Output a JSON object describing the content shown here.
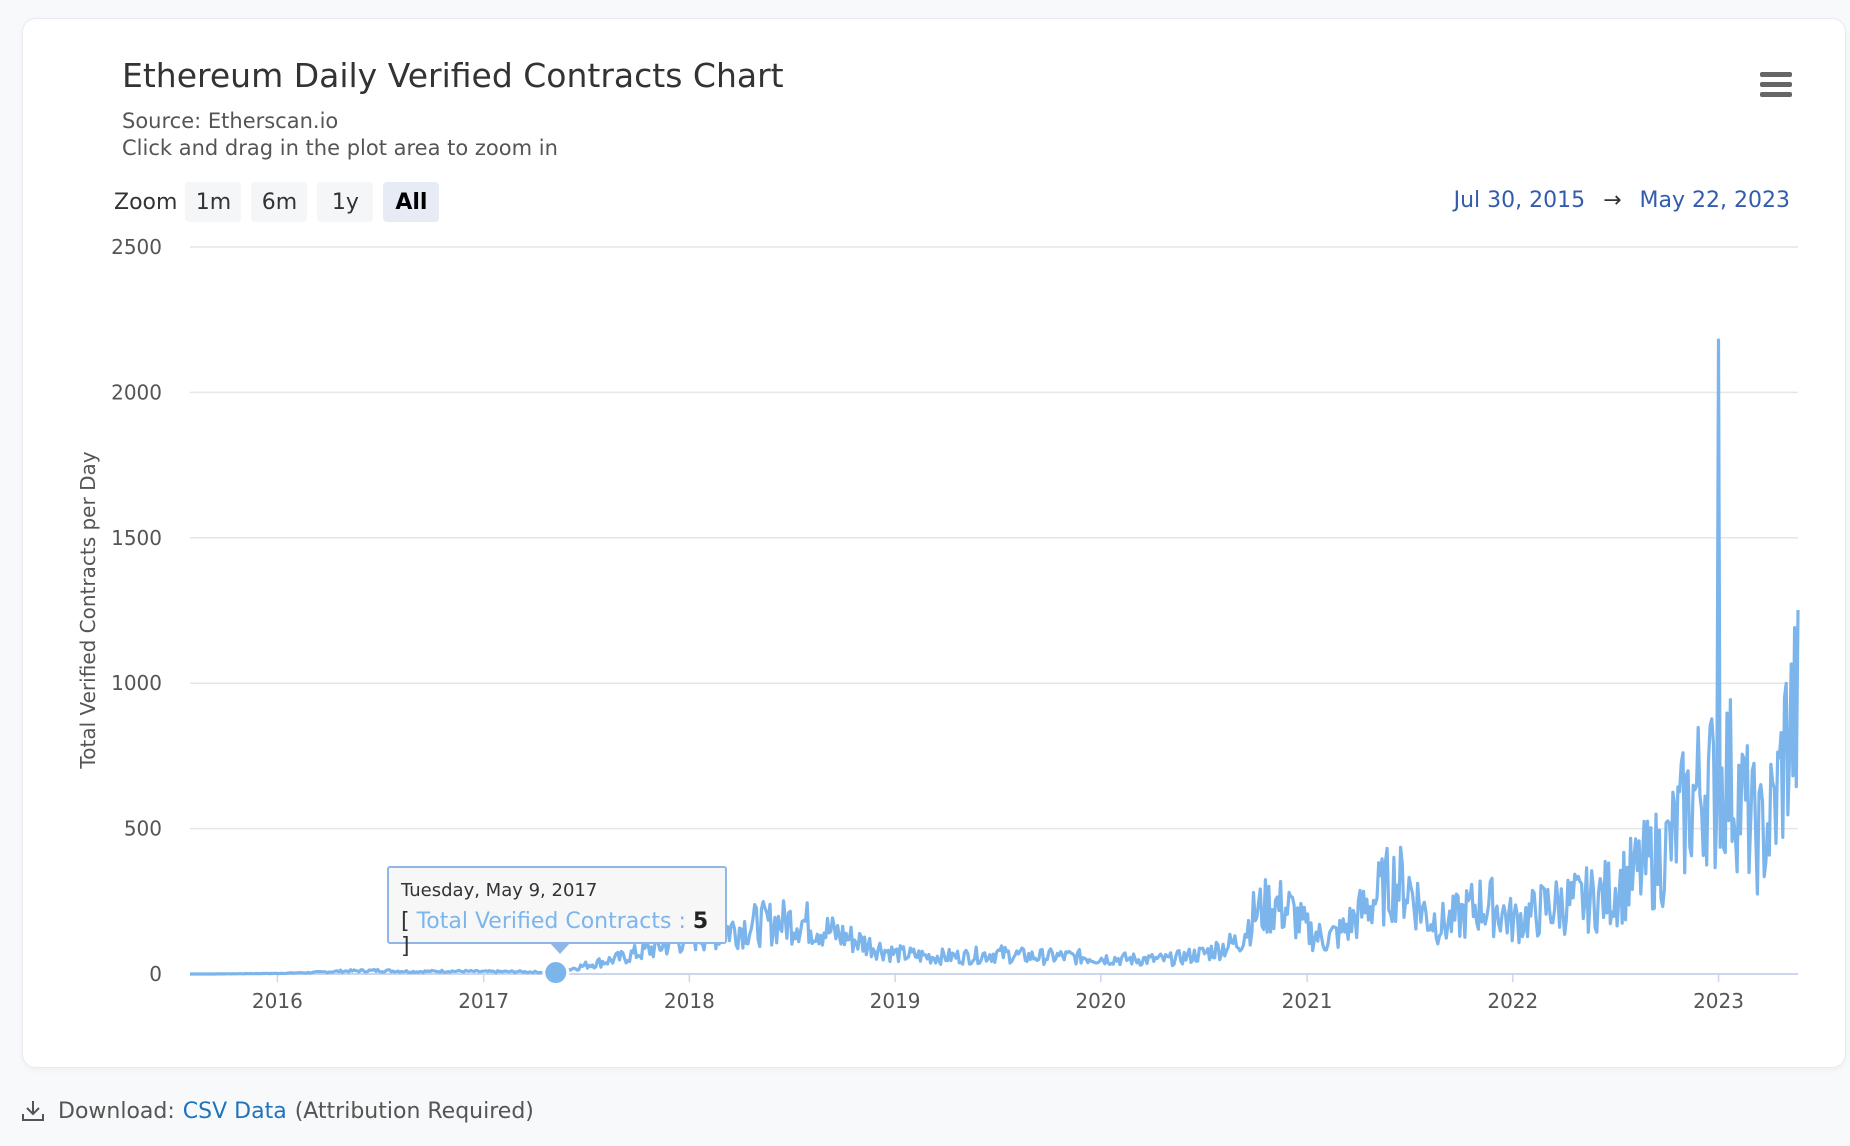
{
  "header": {
    "title": "Ethereum Daily Verified Contracts Chart",
    "source": "Source: Etherscan.io",
    "hint": "Click and drag in the plot area to zoom in"
  },
  "zoom": {
    "label": "Zoom",
    "buttons": [
      "1m",
      "6m",
      "1y",
      "All"
    ],
    "active": "All"
  },
  "range": {
    "from": "Jul 30, 2015",
    "arrow": "→",
    "to": "May 22, 2023"
  },
  "tooltip": {
    "date": "Tuesday, May 9, 2017",
    "open": "[",
    "series": "Total Verified Contracts",
    "sep": ":",
    "value": "5",
    "close": "]"
  },
  "footer": {
    "prefix": "Download:",
    "link": "CSV Data",
    "suffix": "(Attribution Required)"
  },
  "colors": {
    "series": "#7cb5ec",
    "grid": "#e6e6e6",
    "accent": "#335cad"
  },
  "chart_data": {
    "type": "area",
    "title": "Ethereum Daily Verified Contracts Chart",
    "subtitle": "Source: Etherscan.io",
    "ylabel": "Total Verified Contracts per Day",
    "xlabel": "",
    "ylim": [
      0,
      2500
    ],
    "yticks": [
      0,
      500,
      1000,
      1500,
      2000,
      2500
    ],
    "xlim": [
      "2015-07-30",
      "2023-05-22"
    ],
    "xticks": [
      "2016",
      "2017",
      "2018",
      "2019",
      "2020",
      "2021",
      "2022",
      "2023"
    ],
    "grid": true,
    "legend": "none",
    "series": [
      {
        "name": "Total Verified Contracts",
        "x": [
          "2015-07-30",
          "2015-09-01",
          "2015-11-01",
          "2016-01-01",
          "2016-03-01",
          "2016-05-01",
          "2016-07-01",
          "2016-09-01",
          "2016-11-01",
          "2017-01-01",
          "2017-03-01",
          "2017-05-09",
          "2017-07-01",
          "2017-09-01",
          "2017-11-01",
          "2018-01-01",
          "2018-03-01",
          "2018-05-01",
          "2018-07-15",
          "2018-09-01",
          "2018-11-01",
          "2019-01-01",
          "2019-03-01",
          "2019-05-01",
          "2019-07-01",
          "2019-09-01",
          "2019-11-01",
          "2020-01-01",
          "2020-03-01",
          "2020-05-01",
          "2020-07-01",
          "2020-09-01",
          "2020-10-01",
          "2020-11-01",
          "2020-12-01",
          "2021-01-01",
          "2021-02-01",
          "2021-03-01",
          "2021-04-01",
          "2021-05-01",
          "2021-06-01",
          "2021-07-01",
          "2021-08-01",
          "2021-09-01",
          "2021-10-01",
          "2021-11-01",
          "2021-12-01",
          "2022-01-01",
          "2022-02-01",
          "2022-03-01",
          "2022-04-01",
          "2022-05-01",
          "2022-06-01",
          "2022-07-01",
          "2022-08-01",
          "2022-09-01",
          "2022-10-01",
          "2022-10-25",
          "2022-11-15",
          "2022-12-01",
          "2022-12-15",
          "2022-12-31",
          "2023-01-01",
          "2023-01-02",
          "2023-01-15",
          "2023-02-01",
          "2023-02-15",
          "2023-03-01",
          "2023-03-15",
          "2023-04-01",
          "2023-04-15",
          "2023-05-01",
          "2023-05-22"
        ],
        "values": [
          0,
          0,
          1,
          2,
          5,
          10,
          12,
          8,
          10,
          8,
          8,
          5,
          30,
          55,
          90,
          130,
          150,
          170,
          185,
          150,
          110,
          70,
          60,
          60,
          70,
          60,
          60,
          55,
          50,
          50,
          70,
          110,
          210,
          240,
          220,
          150,
          120,
          140,
          200,
          260,
          320,
          300,
          200,
          170,
          200,
          240,
          230,
          180,
          200,
          230,
          240,
          250,
          260,
          290,
          330,
          380,
          420,
          520,
          600,
          640,
          680,
          560,
          2180,
          620,
          700,
          640,
          580,
          520,
          470,
          520,
          600,
          800,
          900
        ]
      }
    ]
  }
}
